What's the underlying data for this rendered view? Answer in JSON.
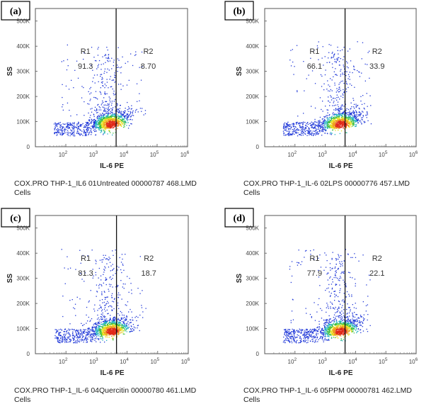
{
  "chart_data": [
    {
      "type": "scatter",
      "panel_label": "(a)",
      "xlabel": "IL-6 PE",
      "ylabel": "SS",
      "x_scale": "log",
      "xlim": [
        10,
        1000000
      ],
      "ylim": [
        0,
        550000
      ],
      "x_ticks": [
        {
          "base": "10",
          "exp": "2"
        },
        {
          "base": "10",
          "exp": "3"
        },
        {
          "base": "10",
          "exp": "4"
        },
        {
          "base": "10",
          "exp": "5"
        },
        {
          "base": "10",
          "exp": "6"
        }
      ],
      "y_ticks": [
        "0",
        "100K",
        "200K",
        "300K",
        "400K",
        "500K"
      ],
      "gate_x": 4500,
      "regions": [
        {
          "name": "R1",
          "value": "91.3"
        },
        {
          "name": "R2",
          "value": "8.70"
        }
      ],
      "caption_line1": "COX.PRO THP-1_IL6 01Untreated 00000787 468.LMD",
      "caption_line2": "Cells"
    },
    {
      "type": "scatter",
      "panel_label": "(b)",
      "xlabel": "IL-6 PE",
      "ylabel": "SS",
      "x_scale": "log",
      "xlim": [
        10,
        1000000
      ],
      "ylim": [
        0,
        550000
      ],
      "x_ticks": [
        {
          "base": "10",
          "exp": "2"
        },
        {
          "base": "10",
          "exp": "3"
        },
        {
          "base": "10",
          "exp": "4"
        },
        {
          "base": "10",
          "exp": "5"
        },
        {
          "base": "10",
          "exp": "6"
        }
      ],
      "y_ticks": [
        "0",
        "100K",
        "200K",
        "300K",
        "400K",
        "500K"
      ],
      "gate_x": 4500,
      "regions": [
        {
          "name": "R1",
          "value": "66.1"
        },
        {
          "name": "R2",
          "value": "33.9"
        }
      ],
      "caption_line1": "COX.PRO THP-1_IL-6 02LPS 00000776 457.LMD",
      "caption_line2": "Cells"
    },
    {
      "type": "scatter",
      "panel_label": "(c)",
      "xlabel": "IL-6 PE",
      "ylabel": "SS",
      "x_scale": "log",
      "xlim": [
        10,
        1000000
      ],
      "ylim": [
        0,
        550000
      ],
      "x_ticks": [
        {
          "base": "10",
          "exp": "2"
        },
        {
          "base": "10",
          "exp": "3"
        },
        {
          "base": "10",
          "exp": "4"
        },
        {
          "base": "10",
          "exp": "5"
        },
        {
          "base": "10",
          "exp": "6"
        }
      ],
      "y_ticks": [
        "0",
        "100K",
        "200K",
        "300K",
        "400K",
        "500K"
      ],
      "gate_x": 4500,
      "regions": [
        {
          "name": "R1",
          "value": "81.3"
        },
        {
          "name": "R2",
          "value": "18.7"
        }
      ],
      "caption_line1": "COX.PRO THP-1_IL-6 04Quercitin 00000780 461.LMD",
      "caption_line2": "Cells"
    },
    {
      "type": "scatter",
      "panel_label": "(d)",
      "xlabel": "IL-6 PE",
      "ylabel": "SS",
      "x_scale": "log",
      "xlim": [
        10,
        1000000
      ],
      "ylim": [
        0,
        550000
      ],
      "x_ticks": [
        {
          "base": "10",
          "exp": "2"
        },
        {
          "base": "10",
          "exp": "3"
        },
        {
          "base": "10",
          "exp": "4"
        },
        {
          "base": "10",
          "exp": "5"
        },
        {
          "base": "10",
          "exp": "6"
        }
      ],
      "y_ticks": [
        "0",
        "100K",
        "200K",
        "300K",
        "400K",
        "500K"
      ],
      "gate_x": 4500,
      "regions": [
        {
          "name": "R1",
          "value": "77.9"
        },
        {
          "name": "R2",
          "value": "22.1"
        }
      ],
      "caption_line1": "COX.PRO THP-1_IL-6 05PPM 00000781 462.LMD",
      "caption_line2": "Cells"
    }
  ]
}
